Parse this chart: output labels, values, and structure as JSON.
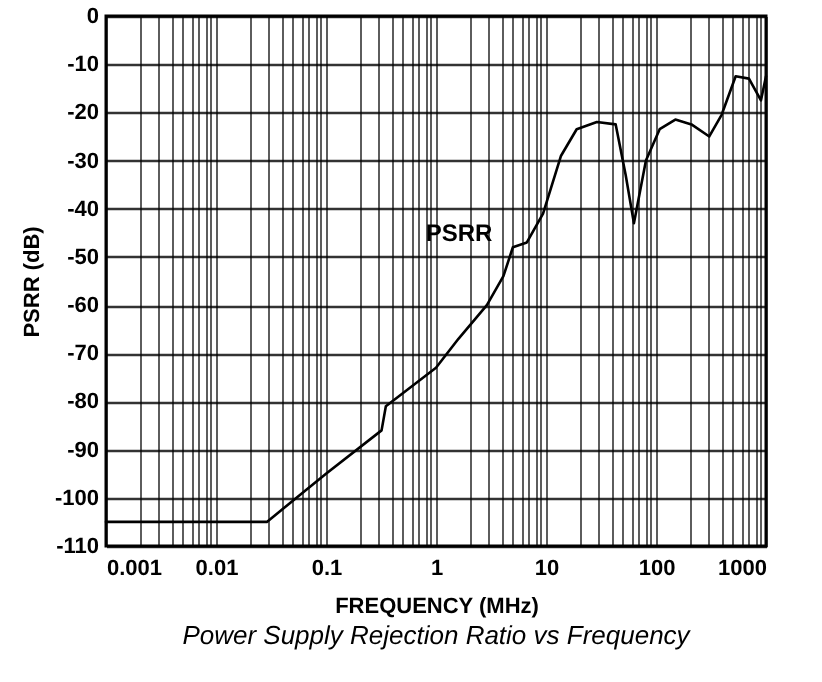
{
  "chart_data": {
    "type": "line",
    "xlabel": "FREQUENCY (MHz)",
    "ylabel": "PSRR (dB)",
    "annotations": [
      "Power Supply Rejection Ratio vs Frequency"
    ],
    "log": "x",
    "grid": true,
    "xlim": [
      0.001,
      1000
    ],
    "xticks": [
      0.001,
      0.01,
      0.1,
      1,
      10,
      100,
      1000
    ],
    "ylim": [
      -110,
      0
    ],
    "yticks": [
      -110,
      -100,
      -90,
      -80,
      -70,
      -60,
      -50,
      -40,
      -30,
      -20,
      -10,
      0
    ],
    "series": [
      {
        "name": "PSRR",
        "color": "#000000",
        "x": [
          0.001,
          0.029,
          0.1,
          0.32,
          0.35,
          1,
          1.6,
          2.9,
          4.1,
          5,
          6.7,
          9.4,
          13.7,
          19,
          29,
          43,
          53,
          63,
          81,
          108,
          150,
          210,
          305,
          395,
          530,
          700,
          900,
          1000
        ],
        "values": [
          -105,
          -105,
          -95,
          -86,
          -81,
          -73,
          -67,
          -60,
          -54,
          -48,
          -47,
          -41,
          -29,
          -23.5,
          -22,
          -22.5,
          -33,
          -43,
          -30,
          -23.5,
          -21.5,
          -22.5,
          -25,
          -20.5,
          -12.5,
          -13,
          -17.5,
          -12.5
        ]
      }
    ]
  }
}
